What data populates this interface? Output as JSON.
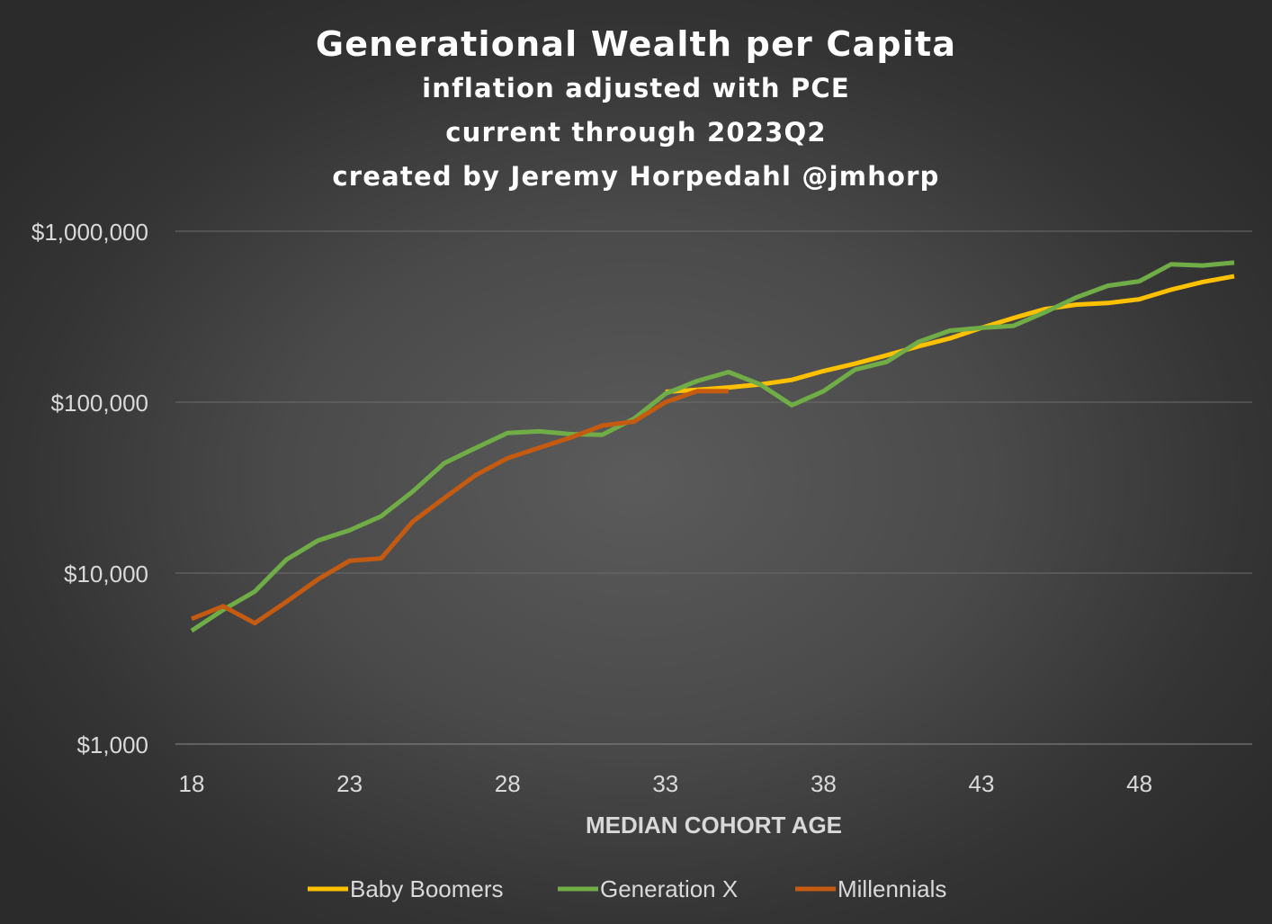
{
  "chart_data": {
    "type": "line",
    "title": "Generational Wealth per Capita",
    "subtitles": [
      "inflation adjusted with PCE",
      "current through 2023Q2",
      "created by Jeremy Horpedahl @jmhorp"
    ],
    "xlabel": "MEDIAN COHORT AGE",
    "ylabel": "",
    "x_ticks": [
      18,
      23,
      28,
      33,
      38,
      43,
      48
    ],
    "y_ticks": [
      {
        "value": 1000,
        "label": "$1,000"
      },
      {
        "value": 10000,
        "label": "$10,000"
      },
      {
        "value": 100000,
        "label": "$100,000"
      },
      {
        "value": 1000000,
        "label": "$1,000,000"
      }
    ],
    "y_scale": "log",
    "xlim": [
      18,
      51
    ],
    "ylim": [
      1000,
      1000000
    ],
    "grid": "horizontal",
    "legend_position": "bottom",
    "series": [
      {
        "name": "Baby Boomers",
        "color": "#ffc000",
        "x": [
          33,
          34,
          35,
          36,
          37,
          38,
          39,
          40,
          41,
          42,
          43,
          44,
          45,
          46,
          47,
          48,
          49,
          50,
          51
        ],
        "values": [
          115000,
          118000,
          122000,
          127000,
          135000,
          152000,
          168000,
          188000,
          212000,
          236000,
          272000,
          310000,
          350000,
          372000,
          380000,
          400000,
          455000,
          505000,
          545000
        ]
      },
      {
        "name": "Generation X",
        "color": "#70ad47",
        "x": [
          18,
          19,
          20,
          21,
          22,
          23,
          24,
          25,
          26,
          27,
          28,
          29,
          30,
          31,
          32,
          33,
          34,
          35,
          36,
          37,
          38,
          39,
          40,
          41,
          42,
          43,
          44,
          45,
          46,
          47,
          48,
          49,
          50,
          51
        ],
        "values": [
          4600,
          6100,
          7800,
          12000,
          15500,
          17800,
          21500,
          30000,
          44000,
          54000,
          66000,
          67500,
          65000,
          64500,
          80000,
          112000,
          133000,
          150000,
          127000,
          96000,
          116000,
          155000,
          172000,
          225000,
          262000,
          272000,
          279000,
          335000,
          410000,
          480000,
          510000,
          640000,
          630000,
          655000
        ]
      },
      {
        "name": "Millennials",
        "color": "#c55a11",
        "x": [
          18,
          19,
          20,
          21,
          22,
          23,
          24,
          25,
          26,
          27,
          28,
          29,
          30,
          31,
          32,
          33,
          34,
          35
        ],
        "values": [
          5400,
          6400,
          5100,
          6800,
          9200,
          11800,
          12200,
          20000,
          27500,
          37500,
          47000,
          54000,
          62000,
          73000,
          77000,
          100000,
          116000,
          116000
        ]
      }
    ]
  }
}
